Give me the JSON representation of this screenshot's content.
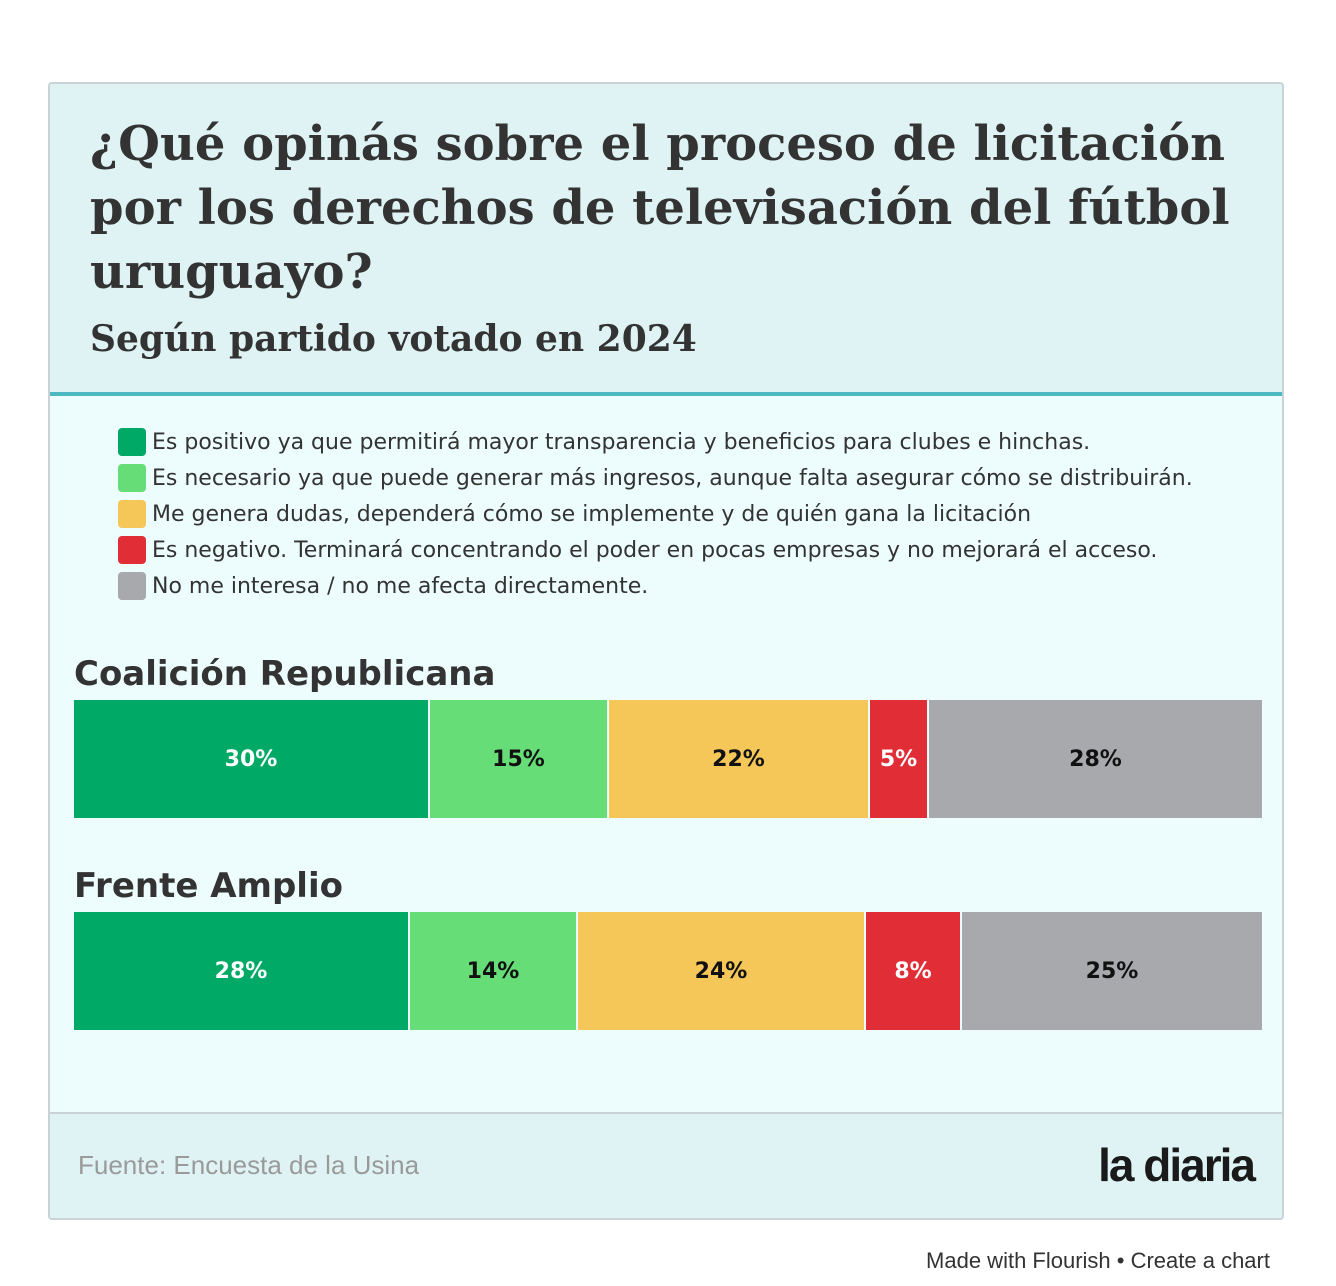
{
  "chart_data": {
    "type": "bar",
    "orientation": "horizontal",
    "stacked": true,
    "normalized_percent": true,
    "title": "¿Qué opinás sobre el proceso de licitación por los derechos de televisación del fútbol uruguayo?",
    "subtitle": "Según partido votado en 2024",
    "categories": [
      "Coalición Republicana",
      "Frente Amplio"
    ],
    "series": [
      {
        "name": "Es positivo ya que permitirá mayor transparencia y beneficios para clubes e hinchas.",
        "color": "#00aa66",
        "text_color": "#ffffff",
        "values": [
          30,
          28
        ],
        "labels": [
          "30%",
          "28%"
        ]
      },
      {
        "name": "Es necesario ya que puede generar más ingresos, aunque falta asegurar cómo se distribuirán.",
        "color": "#66dd77",
        "text_color": "#111111",
        "values": [
          15,
          14
        ],
        "labels": [
          "15%",
          "14%"
        ]
      },
      {
        "name": "Me genera dudas, dependerá cómo se implemente y de quién gana la licitación",
        "color": "#f5c658",
        "text_color": "#111111",
        "values": [
          22,
          24
        ],
        "labels": [
          "22%",
          "24%"
        ]
      },
      {
        "name": "Es negativo. Terminará concentrando el poder en pocas empresas y no mejorará el acceso.",
        "color": "#e02d36",
        "text_color": "#ffffff",
        "values": [
          5,
          8
        ],
        "labels": [
          "5%",
          "8%"
        ]
      },
      {
        "name": "No me interesa / no me afecta directamente.",
        "color": "#a7a9ac",
        "text_color": "#111111",
        "values": [
          28,
          25
        ],
        "labels": [
          "28%",
          "25%"
        ]
      }
    ],
    "legend_position": "top-left",
    "xlim": [
      0,
      100
    ],
    "grid": false
  },
  "footer": {
    "source": "Fuente: Encuesta de la Usina",
    "logo": "la diaria"
  },
  "credit": "Made with Flourish • Create a chart"
}
